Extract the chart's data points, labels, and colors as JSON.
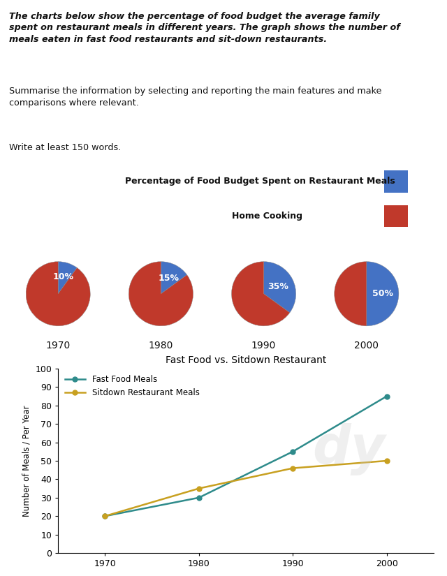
{
  "title_bold": "The charts below show the percentage of food budget the average family\nspent on restaurant meals in different years. The graph shows the number of\nmeals eaten in fast food restaurants and sit-down restaurants.",
  "subtitle1": "Summarise the information by selecting and reporting the main features and make\ncomparisons where relevant.",
  "subtitle2": "Write at least 150 words.",
  "pie_legend_restaurant": "Percentage of Food Budget Spent on Restaurant Meals",
  "pie_legend_home": "Home Cooking",
  "pie_years": [
    1970,
    1980,
    1990,
    2000
  ],
  "pie_restaurant_pct": [
    10,
    15,
    35,
    50
  ],
  "pie_color_restaurant": "#4472C4",
  "pie_color_home": "#C0392B",
  "line_title": "Fast Food vs. Sitdown Restaurant",
  "line_years": [
    1970,
    1980,
    1990,
    2000
  ],
  "fast_food": [
    20,
    30,
    55,
    85
  ],
  "sitdown": [
    20,
    35,
    46,
    50
  ],
  "fast_food_color": "#2E8B8B",
  "sitdown_color": "#C8A020",
  "fast_food_label": "Fast Food Meals",
  "sitdown_label": "Sitdown Restaurant Meals",
  "ylabel_line": "Number of Meals / Per Year",
  "ylim_line": [
    0,
    100
  ],
  "yticks_line": [
    0,
    10,
    20,
    30,
    40,
    50,
    60,
    70,
    80,
    90,
    100
  ],
  "bg_color": "#FFFFFF"
}
